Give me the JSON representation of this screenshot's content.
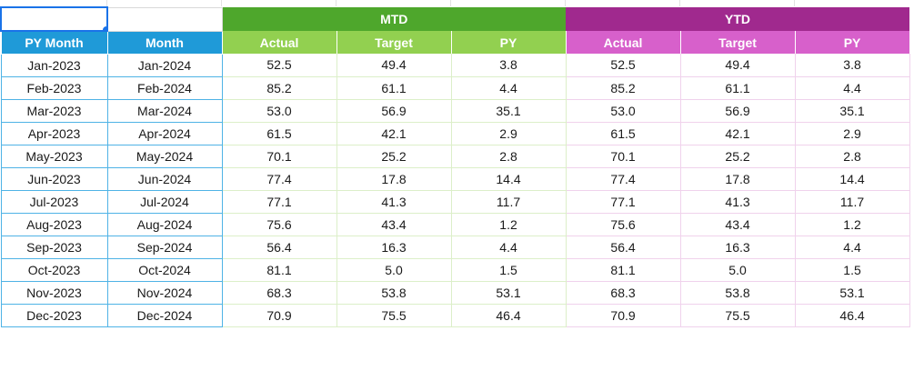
{
  "header_groups": {
    "mtd": "MTD",
    "ytd": "YTD"
  },
  "columns": {
    "py_month": "PY Month",
    "month": "Month",
    "actual": "Actual",
    "target": "Target",
    "py": "PY"
  },
  "colors": {
    "mtd_band": "#4ea72c",
    "mtd_header": "#92d050",
    "ytd_band": "#a0298e",
    "ytd_header": "#d760cb",
    "month_header": "#1f9ad8",
    "selection": "#1a73e8"
  },
  "rows": [
    {
      "py_month": "Jan-2023",
      "month": "Jan-2024",
      "mtd_actual": "52.5",
      "mtd_target": "49.4",
      "mtd_py": "3.8",
      "ytd_actual": "52.5",
      "ytd_target": "49.4",
      "ytd_py": "3.8"
    },
    {
      "py_month": "Feb-2023",
      "month": "Feb-2024",
      "mtd_actual": "85.2",
      "mtd_target": "61.1",
      "mtd_py": "4.4",
      "ytd_actual": "85.2",
      "ytd_target": "61.1",
      "ytd_py": "4.4"
    },
    {
      "py_month": "Mar-2023",
      "month": "Mar-2024",
      "mtd_actual": "53.0",
      "mtd_target": "56.9",
      "mtd_py": "35.1",
      "ytd_actual": "53.0",
      "ytd_target": "56.9",
      "ytd_py": "35.1"
    },
    {
      "py_month": "Apr-2023",
      "month": "Apr-2024",
      "mtd_actual": "61.5",
      "mtd_target": "42.1",
      "mtd_py": "2.9",
      "ytd_actual": "61.5",
      "ytd_target": "42.1",
      "ytd_py": "2.9"
    },
    {
      "py_month": "May-2023",
      "month": "May-2024",
      "mtd_actual": "70.1",
      "mtd_target": "25.2",
      "mtd_py": "2.8",
      "ytd_actual": "70.1",
      "ytd_target": "25.2",
      "ytd_py": "2.8"
    },
    {
      "py_month": "Jun-2023",
      "month": "Jun-2024",
      "mtd_actual": "77.4",
      "mtd_target": "17.8",
      "mtd_py": "14.4",
      "ytd_actual": "77.4",
      "ytd_target": "17.8",
      "ytd_py": "14.4"
    },
    {
      "py_month": "Jul-2023",
      "month": "Jul-2024",
      "mtd_actual": "77.1",
      "mtd_target": "41.3",
      "mtd_py": "11.7",
      "ytd_actual": "77.1",
      "ytd_target": "41.3",
      "ytd_py": "11.7"
    },
    {
      "py_month": "Aug-2023",
      "month": "Aug-2024",
      "mtd_actual": "75.6",
      "mtd_target": "43.4",
      "mtd_py": "1.2",
      "ytd_actual": "75.6",
      "ytd_target": "43.4",
      "ytd_py": "1.2"
    },
    {
      "py_month": "Sep-2023",
      "month": "Sep-2024",
      "mtd_actual": "56.4",
      "mtd_target": "16.3",
      "mtd_py": "4.4",
      "ytd_actual": "56.4",
      "ytd_target": "16.3",
      "ytd_py": "4.4"
    },
    {
      "py_month": "Oct-2023",
      "month": "Oct-2024",
      "mtd_actual": "81.1",
      "mtd_target": "5.0",
      "mtd_py": "1.5",
      "ytd_actual": "81.1",
      "ytd_target": "5.0",
      "ytd_py": "1.5"
    },
    {
      "py_month": "Nov-2023",
      "month": "Nov-2024",
      "mtd_actual": "68.3",
      "mtd_target": "53.8",
      "mtd_py": "53.1",
      "ytd_actual": "68.3",
      "ytd_target": "53.8",
      "ytd_py": "53.1"
    },
    {
      "py_month": "Dec-2023",
      "month": "Dec-2024",
      "mtd_actual": "70.9",
      "mtd_target": "75.5",
      "mtd_py": "46.4",
      "ytd_actual": "70.9",
      "ytd_target": "75.5",
      "ytd_py": "46.4"
    }
  ]
}
